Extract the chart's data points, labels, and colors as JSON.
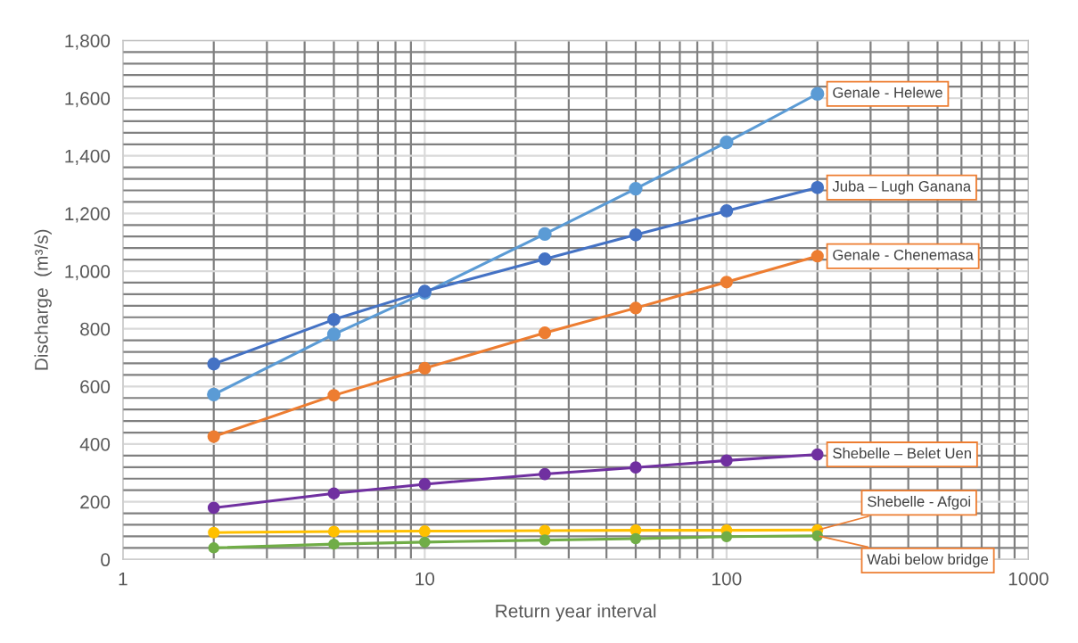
{
  "chart_data": {
    "type": "line",
    "xlabel": "Return year interval",
    "ylabel": "Discharge  (m³/s)",
    "log": "x",
    "grid": true,
    "legend": false,
    "marker": "circle",
    "line_style": "solid",
    "xlim": [
      1,
      1000
    ],
    "xticks": [
      1,
      10,
      100,
      1000
    ],
    "ylim": [
      0,
      1800
    ],
    "yticks": [
      0,
      200,
      400,
      600,
      800,
      {
        "value": 1000,
        "label": "1,000"
      },
      {
        "value": 1200,
        "label": "1,200"
      },
      {
        "value": 1400,
        "label": "1,400"
      },
      {
        "value": 1600,
        "label": "1,600"
      },
      {
        "value": 1800,
        "label": "1,800"
      }
    ],
    "x": [
      2,
      5,
      10,
      25,
      50,
      100,
      200
    ],
    "series": [
      {
        "name": "Genale - Helewe",
        "color": "#5b9bd5",
        "values": [
          572,
          781,
          925,
          1129,
          1286,
          1447,
          1615
        ]
      },
      {
        "name": "Juba – Lugh Ganana",
        "color": "#4472c4",
        "values": [
          678,
          832,
          930,
          1042,
          1126,
          1209,
          1290
        ]
      },
      {
        "name": "Genale - Chenemasa",
        "color": "#ed7d31",
        "values": [
          426,
          569,
          663,
          786,
          872,
          962,
          1052
        ]
      },
      {
        "name": "Shebelle – Belet Uen",
        "color": "#7030a0",
        "values": [
          179,
          229,
          261,
          296,
          319,
          343,
          364
        ]
      },
      {
        "name": "Shebelle - Afgoi",
        "color": "#ffc000",
        "values": [
          93,
          97,
          98,
          100,
          101,
          101,
          102
        ]
      },
      {
        "name": "Wabi below bridge",
        "color": "#70ad47",
        "values": [
          40,
          53,
          60,
          67,
          72,
          79,
          82
        ]
      }
    ]
  }
}
